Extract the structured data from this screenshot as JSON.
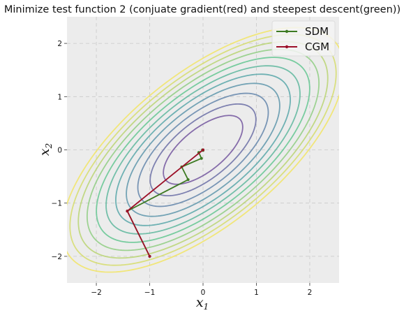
{
  "chart_data": {
    "type": "line",
    "title": "Minimize test function 2 (conjuate gradient(red) and steepest descent(green))",
    "xlabel_base": "x",
    "xlabel_sub": "1",
    "ylabel_base": "x",
    "ylabel_sub": "2",
    "xlim": [
      -2.55,
      2.55
    ],
    "ylim": [
      -2.5,
      2.5
    ],
    "xticks": [
      -2,
      -1,
      0,
      1,
      2
    ],
    "yticks": [
      -2,
      -1,
      0,
      1,
      2
    ],
    "xtick_labels": [
      "−2",
      "−1",
      "0",
      "1",
      "2"
    ],
    "ytick_labels": [
      "−2",
      "−1",
      "0",
      "1",
      "2"
    ],
    "grid": true,
    "legend_position": "top-right",
    "contours": {
      "center": [
        0,
        0
      ],
      "angle_deg": 39,
      "axis_ratio": 2.25,
      "levels_major_semiaxis": [
        0.9,
        1.2,
        1.48,
        1.74,
        1.98,
        2.2,
        2.42,
        2.63,
        2.83,
        3.02,
        3.2
      ],
      "colormap": [
        "#6b4c9a",
        "#5b7fa8",
        "#4fa3a5",
        "#5bc48c",
        "#b7d36b",
        "#f3e55d"
      ]
    },
    "series": [
      {
        "name": "SDM",
        "color": "#3d7a22",
        "x": [
          -1.0,
          -1.42,
          -0.28,
          -0.4,
          -0.03,
          -0.08,
          0.0,
          -0.01,
          0.0
        ],
        "y": [
          -2.0,
          -1.15,
          -0.56,
          -0.32,
          -0.16,
          -0.05,
          -0.01,
          0.0,
          0.0
        ]
      },
      {
        "name": "CGM",
        "color": "#9c1028",
        "x": [
          -1.0,
          -1.42,
          0.0
        ],
        "y": [
          -2.0,
          -1.15,
          0.0
        ]
      }
    ]
  }
}
